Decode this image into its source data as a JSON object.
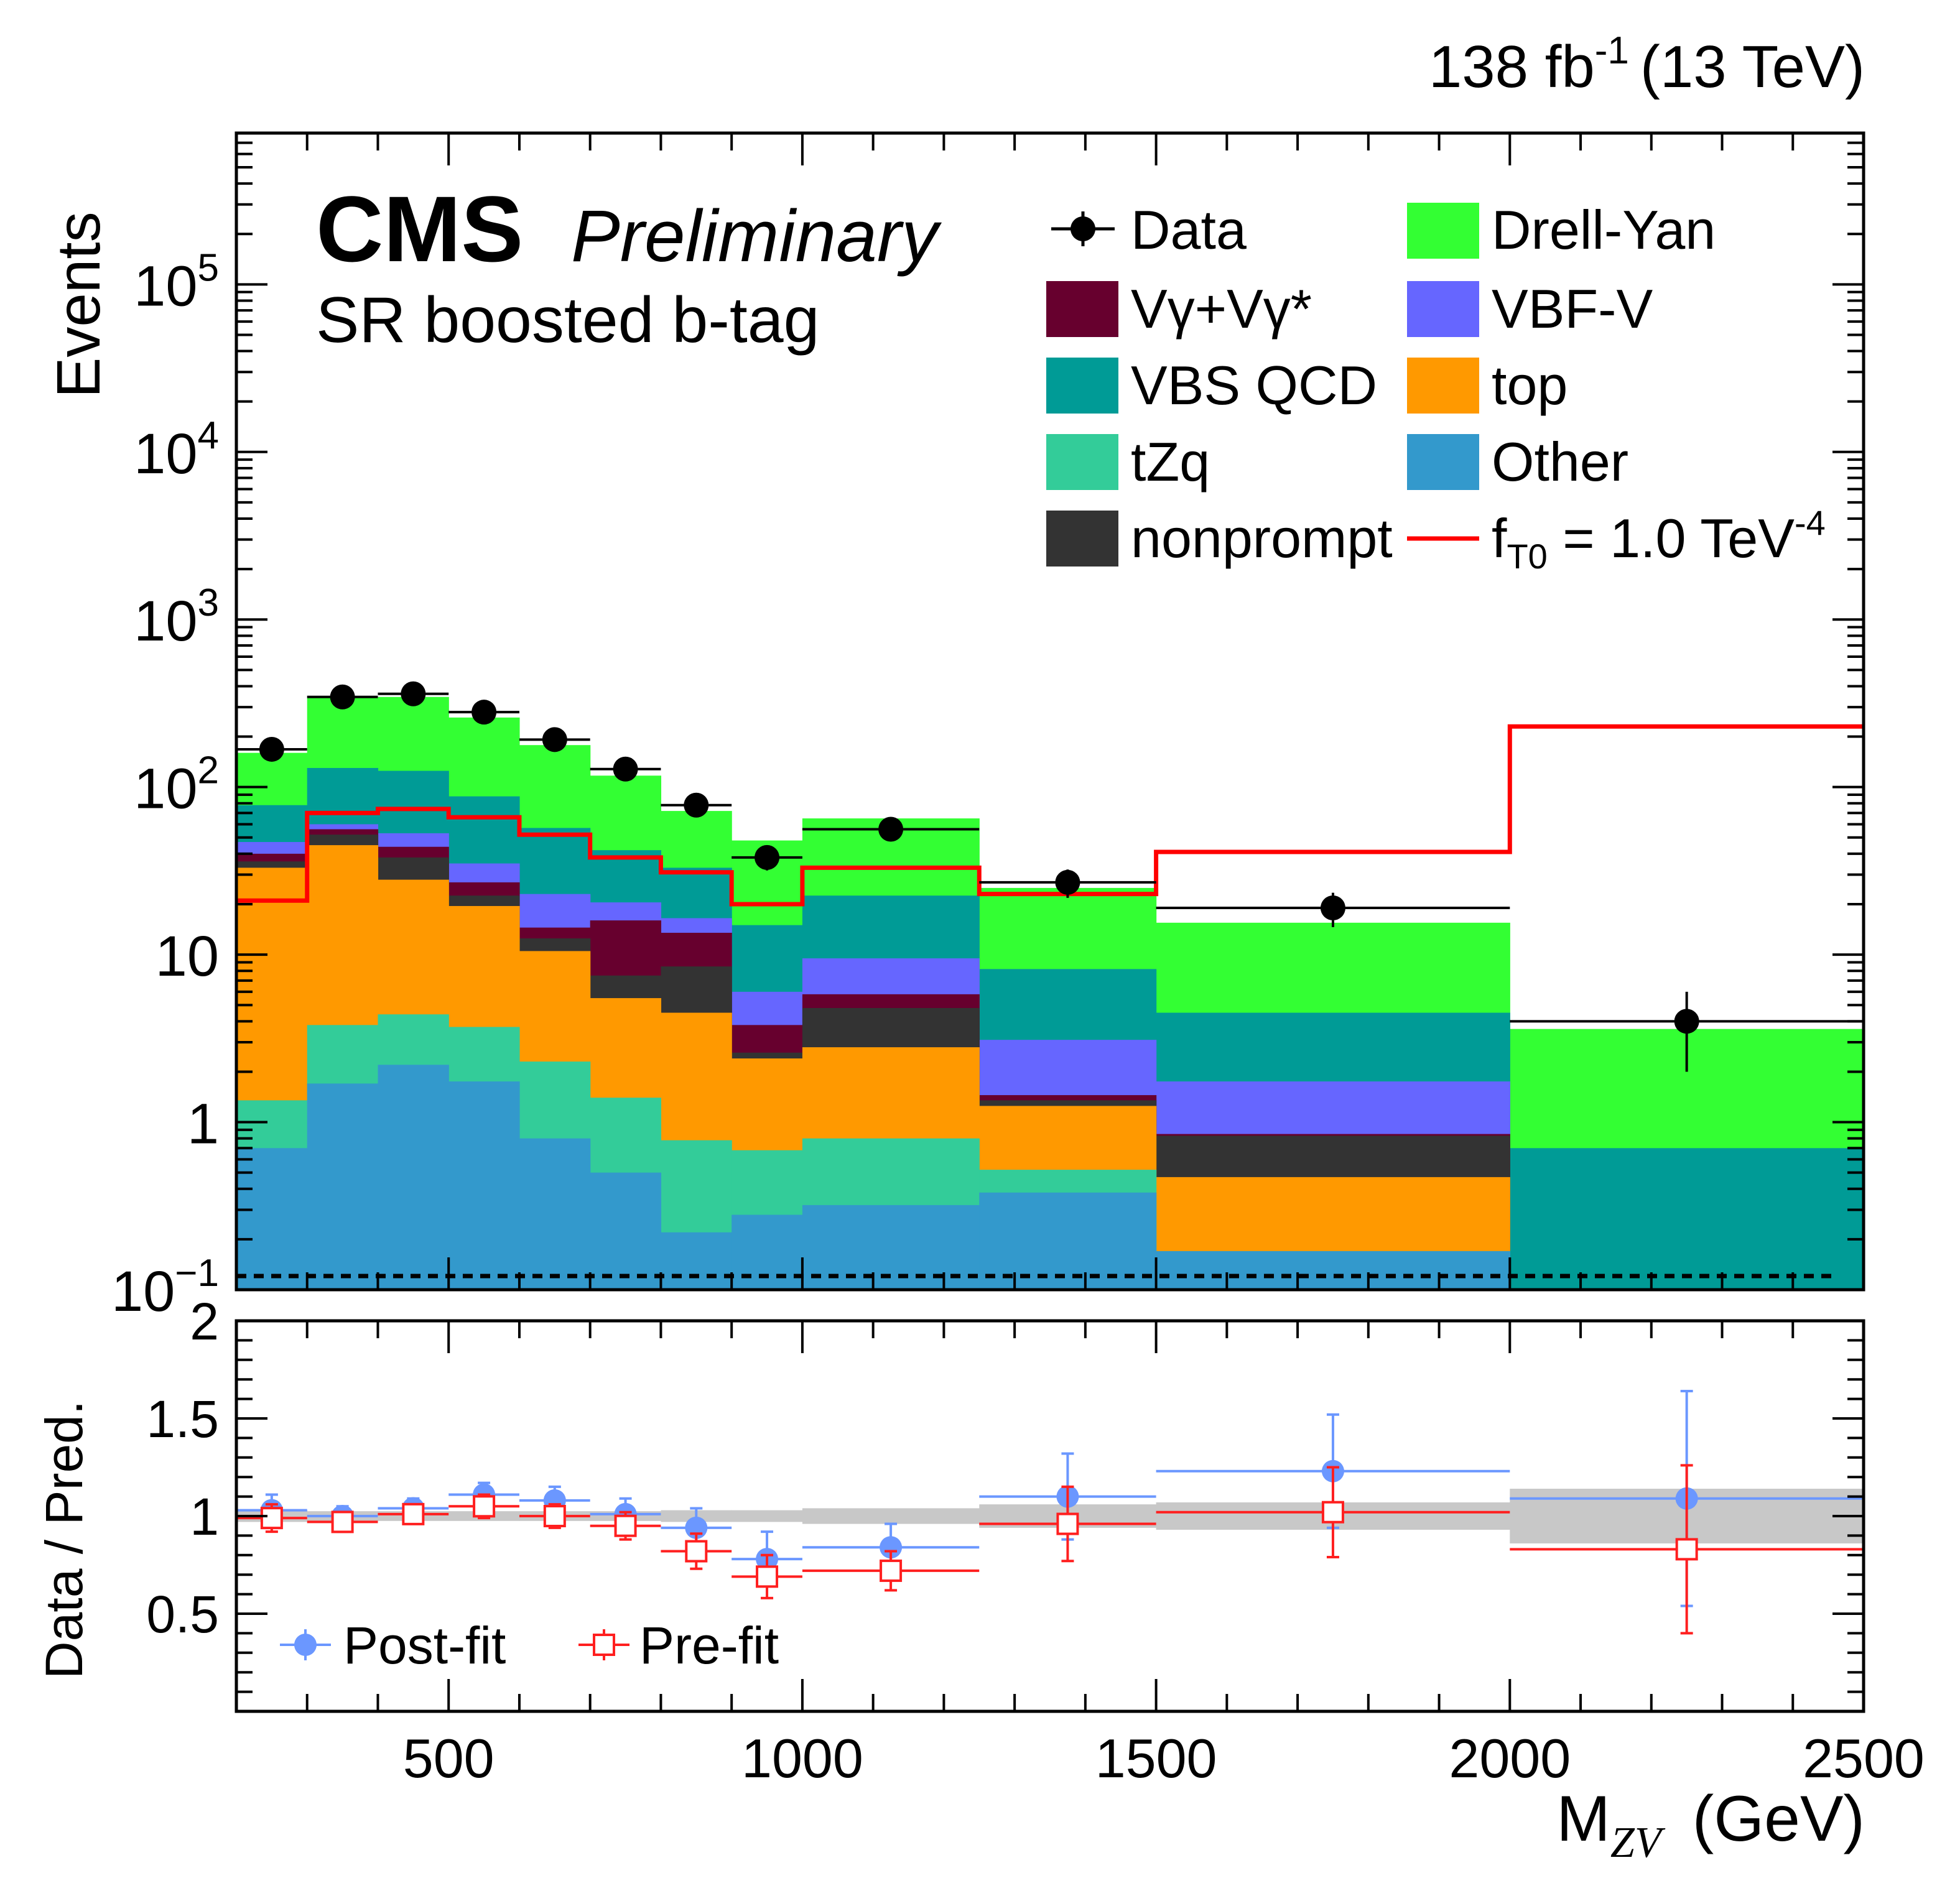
{
  "header": {
    "lumi": "138 fb",
    "lumi_exp": "-1",
    "energy": "(13 TeV)"
  },
  "labels": {
    "experiment": "CMS",
    "status": "Preliminary",
    "region": "SR boosted b-tag"
  },
  "colors": {
    "Vg": "#67002e",
    "VBS_QCD": "#009b96",
    "tZq": "#33cc99",
    "nonprompt": "#333333",
    "DrellYan": "#33ff33",
    "VBF_V": "#6666ff",
    "top": "#ff9900",
    "Other": "#3399cc",
    "signal": "#ff0000",
    "postfit": "#6b97ff",
    "prefit": "#ff1f1f",
    "band": "#c8c8c8"
  },
  "legend": {
    "data": "Data",
    "vg": "Vγ+Vγ*",
    "vbsqcd": "VBS QCD",
    "tzq": "tZq",
    "nonprompt": "nonprompt",
    "dy": "Drell-Yan",
    "vbfv": "VBF-V",
    "top": "top",
    "other": "Other",
    "signal_f": "f",
    "signal_sub": "T0",
    "signal_val": " = 1.0 TeV",
    "signal_exp": "-4"
  },
  "chart_data": [
    {
      "type": "bar",
      "stacked": true,
      "title": "",
      "xlabel_main": "M",
      "xlabel_sub": "ZV",
      "xlabel_unit": "(GeV)",
      "ylabel": "Events",
      "yscale": "log",
      "ylim": [
        0.1,
        800000
      ],
      "xlim": [
        200,
        2500
      ],
      "y_ticks": [
        {
          "v": 0.1,
          "base": "10",
          "exp": "−1"
        },
        {
          "v": 1,
          "base": "1",
          "exp": ""
        },
        {
          "v": 10,
          "base": "10",
          "exp": ""
        },
        {
          "v": 100,
          "base": "10",
          "exp": "2"
        },
        {
          "v": 1000,
          "base": "10",
          "exp": "3"
        },
        {
          "v": 10000,
          "base": "10",
          "exp": "4"
        },
        {
          "v": 100000,
          "base": "10",
          "exp": "5"
        }
      ],
      "bin_edges": [
        200,
        300,
        400,
        500,
        600,
        700,
        800,
        900,
        1000,
        1250,
        1500,
        2000,
        2500
      ],
      "stack_order": [
        "Other",
        "tZq",
        "top",
        "nonprompt",
        "Vγ+Vγ*",
        "VBF-V",
        "VBS QCD",
        "Drell-Yan"
      ],
      "stack_top": {
        "Other": [
          0.7,
          1.7,
          2.2,
          1.75,
          0.8,
          0.5,
          0.22,
          0.28,
          0.32,
          0.38,
          0.17,
          0.1
        ],
        "tZq": [
          1.35,
          3.8,
          4.4,
          3.7,
          2.3,
          1.4,
          0.78,
          0.68,
          0.8,
          0.52,
          0.17,
          0.1
        ],
        "top": [
          33,
          45,
          28,
          19.5,
          10.5,
          5.5,
          4.5,
          2.4,
          2.8,
          1.25,
          0.47,
          0.1
        ],
        "nonprompt": [
          36,
          52,
          38,
          22.5,
          12.5,
          7.5,
          8.5,
          2.6,
          4.8,
          1.35,
          0.83,
          0.1
        ],
        "Vγ+Vγ*": [
          40,
          56,
          44,
          27,
          14.5,
          16,
          13.5,
          3.8,
          5.8,
          1.45,
          0.85,
          0.1
        ],
        "VBF-V": [
          47,
          60,
          53,
          35,
          23,
          20.5,
          16.5,
          6.0,
          9.5,
          3.1,
          1.75,
          0.1
        ],
        "VBS QCD": [
          78,
          130,
          125,
          88,
          57,
          42,
          33,
          15,
          22.5,
          8.2,
          4.5,
          0.7
        ],
        "Drell-Yan": [
          160,
          340,
          345,
          260,
          178,
          117,
          72,
          48,
          65,
          25,
          15.5,
          3.6
        ]
      },
      "data_points": {
        "x": [
          250,
          350,
          450,
          550,
          650,
          750,
          850,
          950,
          1125,
          1375,
          1750,
          2250
        ],
        "y": [
          168,
          345,
          360,
          280,
          192,
          128,
          78,
          38,
          56,
          27,
          19,
          4.0
        ],
        "err_lo": [
          13,
          18.6,
          19,
          16.7,
          13.9,
          11.3,
          8.8,
          6.2,
          7.5,
          5.2,
          4.4,
          2.0
        ],
        "err_hi": [
          13,
          18.6,
          19,
          16.7,
          13.9,
          11.3,
          8.8,
          6.2,
          7.5,
          5.2,
          4.4,
          2.0
        ]
      },
      "signal": {
        "name": "f_T0 = 1.0 TeV^-4",
        "values": [
          21,
          70,
          74,
          66,
          52,
          38,
          31,
          20,
          33,
          23,
          41,
          230
        ]
      }
    },
    {
      "type": "scatter",
      "ylabel": "Data / Pred.",
      "ylim": [
        0,
        2
      ],
      "xlim": [
        200,
        2500
      ],
      "y_ticks": [
        "0.5",
        "1",
        "1.5",
        "2"
      ],
      "x_ticks": [
        "500",
        "1000",
        "1500",
        "2000",
        "2500"
      ],
      "reference_line": 1.0,
      "uncertainty_band": [
        0.03,
        0.025,
        0.025,
        0.025,
        0.025,
        0.025,
        0.03,
        0.03,
        0.04,
        0.06,
        0.07,
        0.14
      ],
      "series": [
        {
          "name": "Post-fit",
          "x": [
            250,
            350,
            450,
            550,
            650,
            750,
            850,
            950,
            1125,
            1375,
            1750,
            2250
          ],
          "y": [
            1.03,
            1.0,
            1.04,
            1.11,
            1.08,
            1.01,
            0.94,
            0.78,
            0.84,
            1.1,
            1.23,
            1.09
          ],
          "err": [
            0.08,
            0.05,
            0.05,
            0.06,
            0.07,
            0.08,
            0.1,
            0.14,
            0.12,
            0.22,
            0.29,
            0.55
          ]
        },
        {
          "name": "Pre-fit",
          "x": [
            250,
            350,
            450,
            550,
            650,
            750,
            850,
            950,
            1125,
            1375,
            1750,
            2250
          ],
          "y": [
            0.99,
            0.97,
            1.01,
            1.05,
            1.0,
            0.95,
            0.82,
            0.69,
            0.72,
            0.96,
            1.02,
            0.83
          ],
          "err": [
            0.07,
            0.05,
            0.05,
            0.06,
            0.06,
            0.07,
            0.09,
            0.11,
            0.1,
            0.19,
            0.23,
            0.43
          ]
        }
      ]
    }
  ]
}
